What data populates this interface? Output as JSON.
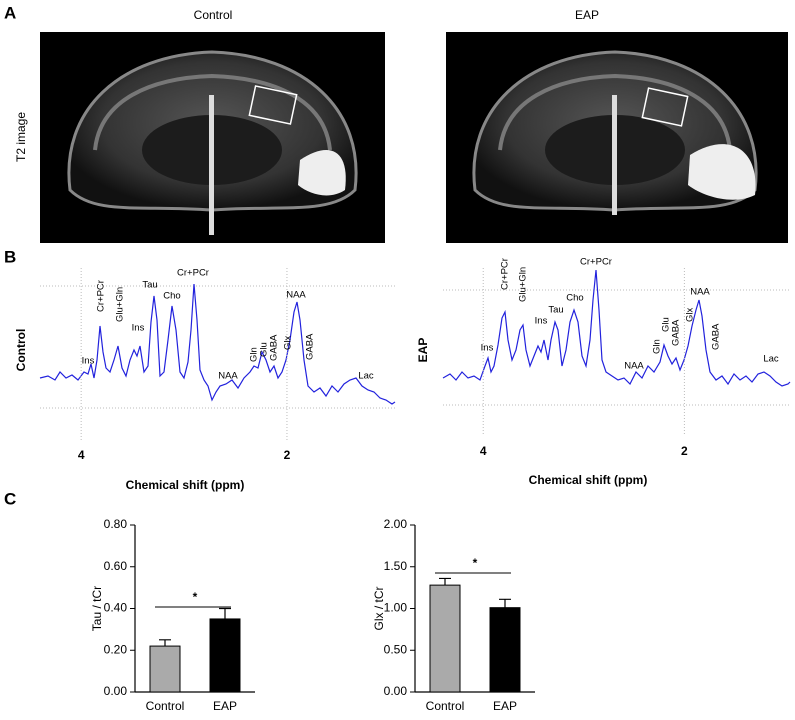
{
  "panel_labels": [
    "A",
    "B",
    "C"
  ],
  "panel_a": {
    "columns": [
      "Control",
      "EAP"
    ],
    "row_label": "T2 image"
  },
  "panel_b": {
    "row_labels": [
      "Control",
      "EAP"
    ],
    "x_label": "Chemical shift (ppm)",
    "xlim": [
      4.4,
      0.95
    ],
    "xticks": [
      4,
      2
    ],
    "peaks": [
      [
        "Ins",
        "Cr+PCr",
        "Glu+Gln",
        "Ins",
        "Tau",
        "Cho",
        "Cr+PCr",
        "NAA",
        "Gln",
        "Glu",
        "GABA",
        "Glx",
        "NAA",
        "GABA",
        "Lac"
      ],
      [
        "Ins",
        "Cr+PCr",
        "Glu+Gln",
        "Ins",
        "Tau",
        "Cho",
        "Cr+PCr",
        "NAA",
        "Gln",
        "Glu",
        "GABA",
        "Glx",
        "NAA",
        "GABA",
        "Lac"
      ]
    ]
  },
  "chart_data": [
    {
      "type": "bar",
      "y_label": "Tau / tCr",
      "categories": [
        "Control",
        "EAP"
      ],
      "values": [
        0.22,
        0.35
      ],
      "errors": [
        0.03,
        0.05
      ],
      "colors": [
        "#aaaaaa",
        "#000000"
      ],
      "ylim": [
        0,
        0.8
      ],
      "yticks": [
        {
          "value": 0,
          "label": "0.00"
        },
        {
          "value": 0.2,
          "label": "0.20"
        },
        {
          "value": 0.4,
          "label": "0.40"
        },
        {
          "value": 0.6,
          "label": "0.60"
        },
        {
          "value": 0.8,
          "label": "0.80"
        }
      ],
      "significance": "*"
    },
    {
      "type": "bar",
      "y_label": "Glx / tCr",
      "categories": [
        "Control",
        "EAP"
      ],
      "values": [
        1.28,
        1.01
      ],
      "errors": [
        0.08,
        0.1
      ],
      "colors": [
        "#aaaaaa",
        "#000000"
      ],
      "ylim": [
        0,
        2
      ],
      "yticks": [
        {
          "value": 0,
          "label": "0.00"
        },
        {
          "value": 0.5,
          "label": "0.50"
        },
        {
          "value": 1,
          "label": "1.00"
        },
        {
          "value": 1.5,
          "label": "1.50"
        },
        {
          "value": 2,
          "label": "2.00"
        }
      ],
      "significance": "*"
    }
  ]
}
